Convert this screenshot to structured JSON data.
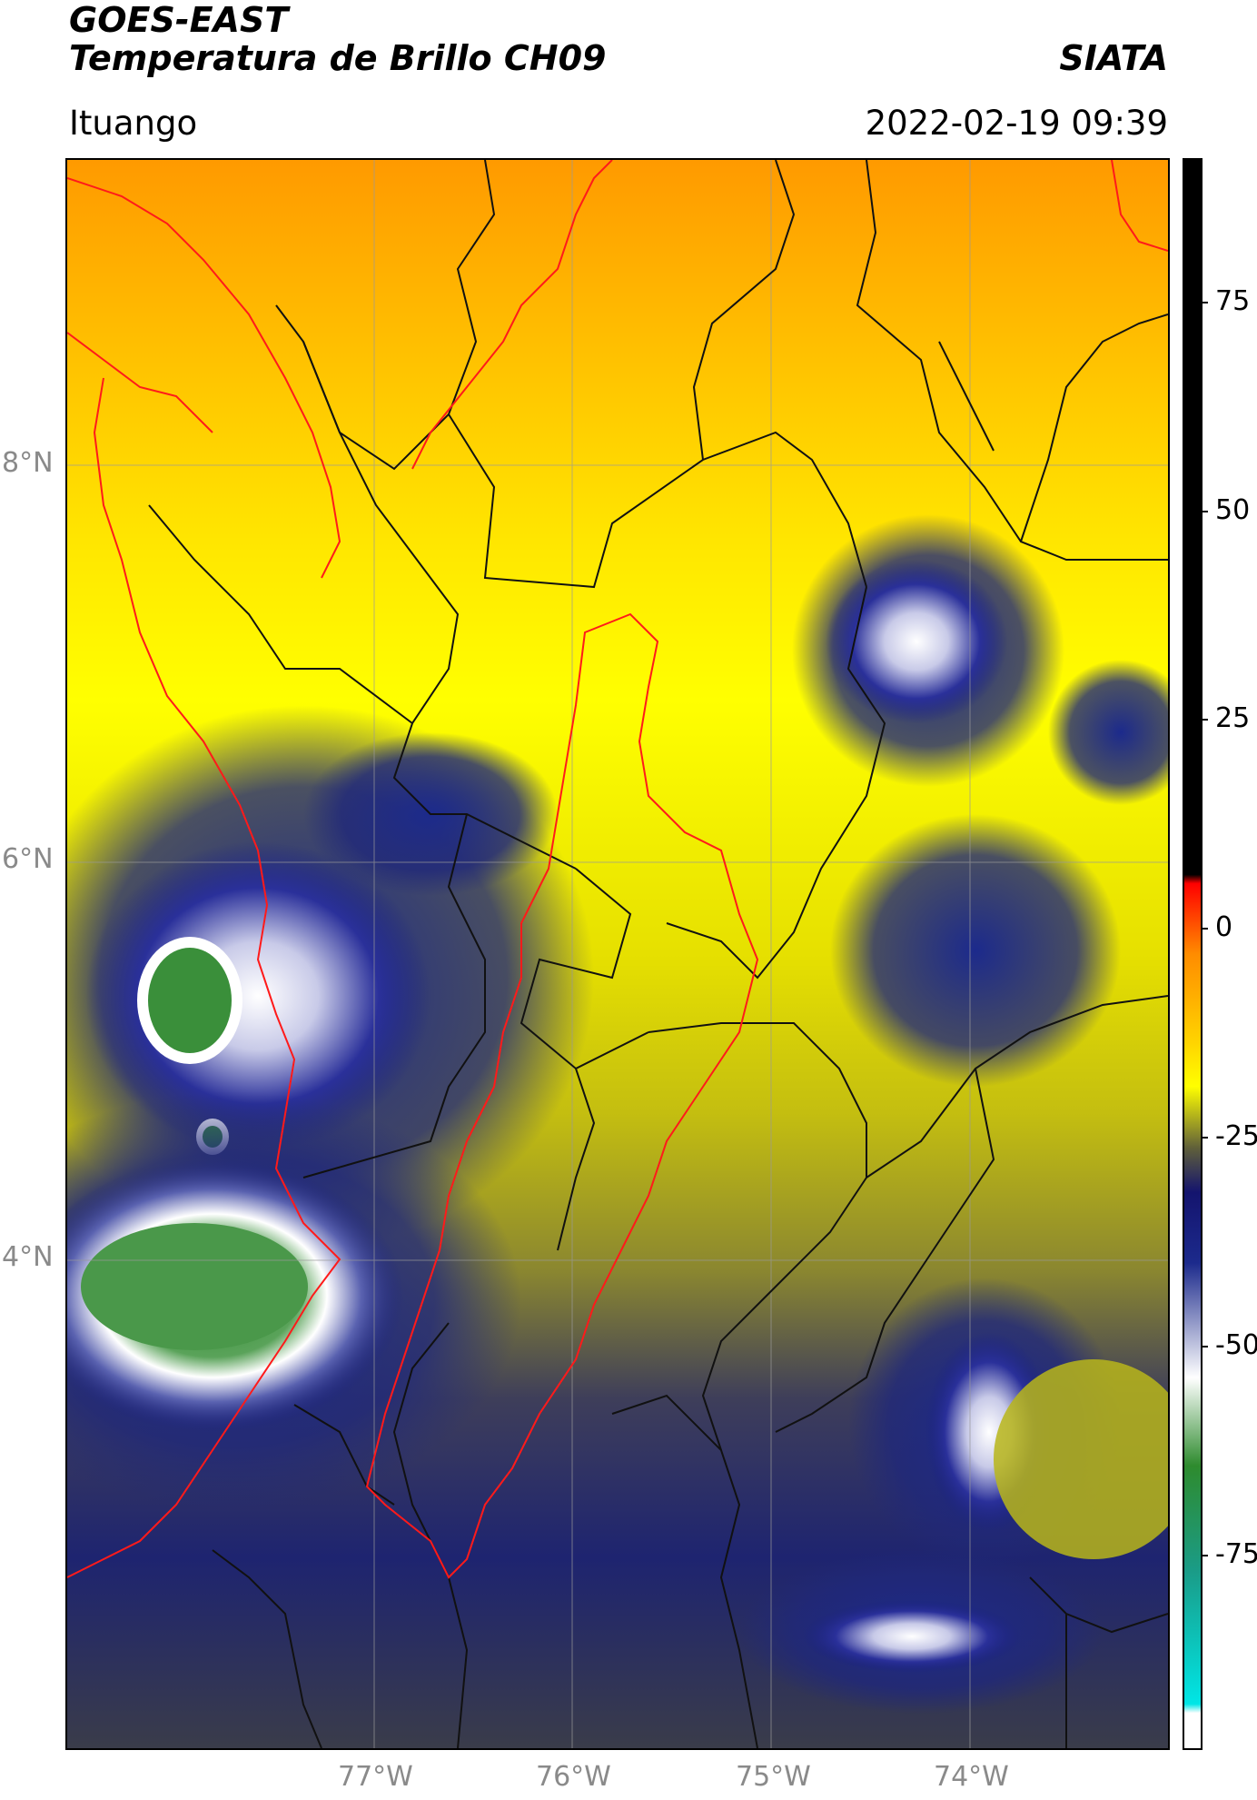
{
  "header": {
    "title_line1": "GOES-EAST",
    "title_line2": "Temperatura de Brillo CH09",
    "organization": "SIATA",
    "location": "Ituango",
    "datetime": "2022-02-19 09:39"
  },
  "map": {
    "lat_labels": [
      "8°N",
      "6°N",
      "4°N"
    ],
    "lon_labels": [
      "77°W",
      "76°W",
      "75°W",
      "74°W"
    ],
    "colors": {
      "border_red": "#ff1a1a",
      "border_black": "#111111",
      "gridline": "#999999"
    }
  },
  "colorbar": {
    "labels": [
      "75",
      "50",
      "25",
      "0",
      "-25",
      "-50",
      "-75"
    ],
    "stops": [
      {
        "value": 90,
        "color": "#000000"
      },
      {
        "value": 9,
        "color": "#000000"
      },
      {
        "value": 8,
        "color": "#ff0000"
      },
      {
        "value": 0,
        "color": "#ff8c00"
      },
      {
        "value": -10,
        "color": "#ffd400"
      },
      {
        "value": -15,
        "color": "#ffff00"
      },
      {
        "value": -22,
        "color": "#5f5f3a"
      },
      {
        "value": -27,
        "color": "#14146e"
      },
      {
        "value": -35,
        "color": "#1c2a8c"
      },
      {
        "value": -48,
        "color": "#ffffff"
      },
      {
        "value": -58,
        "color": "#2e8b2e"
      },
      {
        "value": -70,
        "color": "#1a9c88"
      },
      {
        "value": -85,
        "color": "#00e6e6"
      },
      {
        "value": -86,
        "color": "#ffffff"
      },
      {
        "value": -90,
        "color": "#ffffff"
      }
    ]
  }
}
